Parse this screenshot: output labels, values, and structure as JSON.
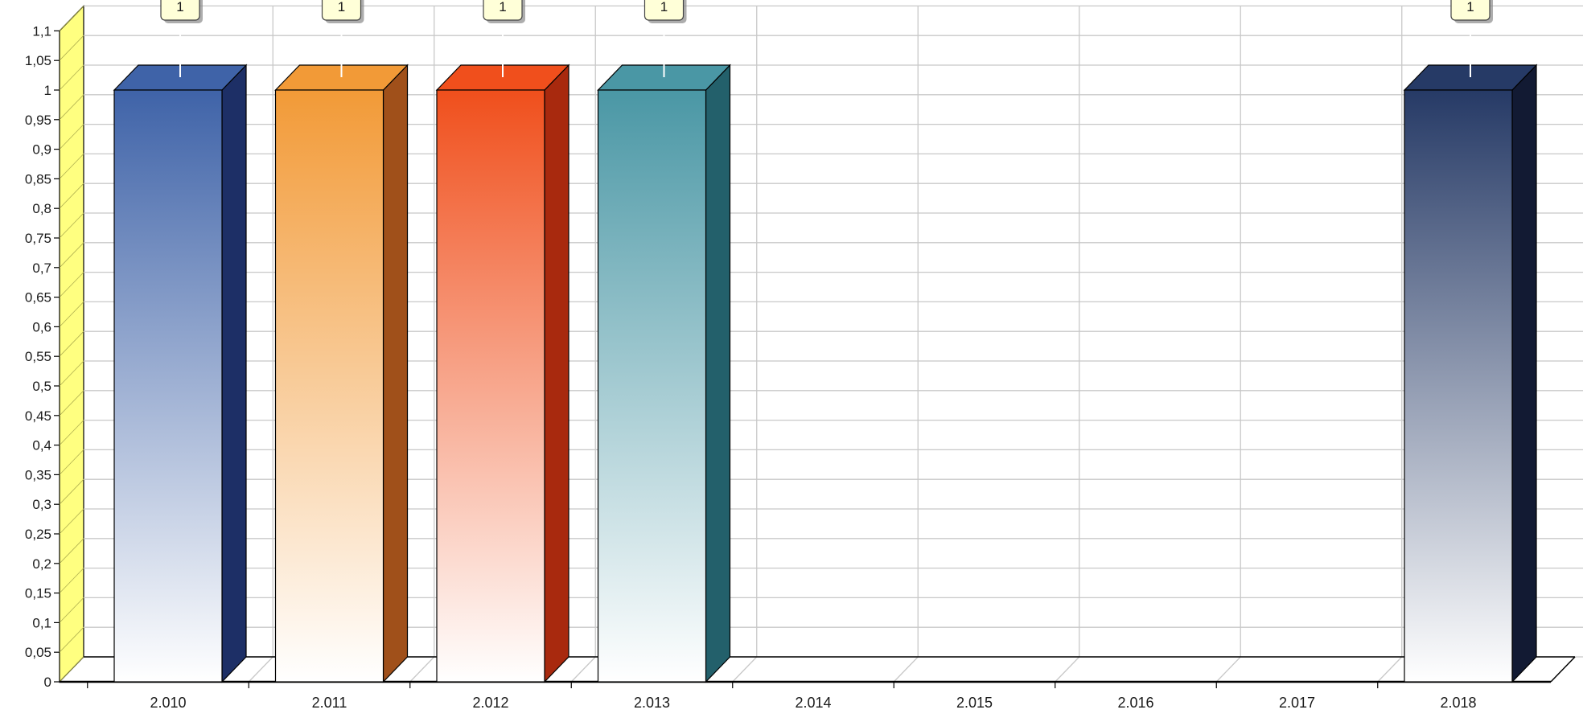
{
  "chart_data": {
    "type": "bar",
    "title": "",
    "xlabel": "",
    "ylabel": "",
    "categories": [
      "2.010",
      "2.011",
      "2.012",
      "2.013",
      "2.014",
      "2.015",
      "2.016",
      "2.017",
      "2.018"
    ],
    "values": [
      1,
      1,
      1,
      1,
      0,
      0,
      0,
      0,
      1
    ],
    "data_labels": [
      "1",
      "1",
      "1",
      "1",
      "",
      "",
      "",
      "",
      "1"
    ],
    "ylim": [
      0,
      1.1
    ],
    "yticks": [
      "0",
      "0,05",
      "0,1",
      "0,15",
      "0,2",
      "0,25",
      "0,3",
      "0,35",
      "0,4",
      "0,45",
      "0,5",
      "0,55",
      "0,6",
      "0,65",
      "0,7",
      "0,75",
      "0,8",
      "0,85",
      "0,9",
      "0,95",
      "1",
      "1,05",
      "1,1"
    ],
    "grid": true,
    "legend": "none",
    "style": "3d",
    "colors": [
      "#3f63a8",
      "#f29a37",
      "#f04f1c",
      "#4a97a5",
      "#c8c8c8",
      "#c8c8c8",
      "#c8c8c8",
      "#c8c8c8",
      "#263a66"
    ],
    "side_colors": [
      "#1d2f66",
      "#a0501a",
      "#a8290e",
      "#23606b",
      "#888888",
      "#888888",
      "#888888",
      "#888888",
      "#121a33"
    ],
    "wall_color": "#ffff80",
    "grid_color": "#c8c8c8",
    "label_box_color": "#ffffd8"
  }
}
